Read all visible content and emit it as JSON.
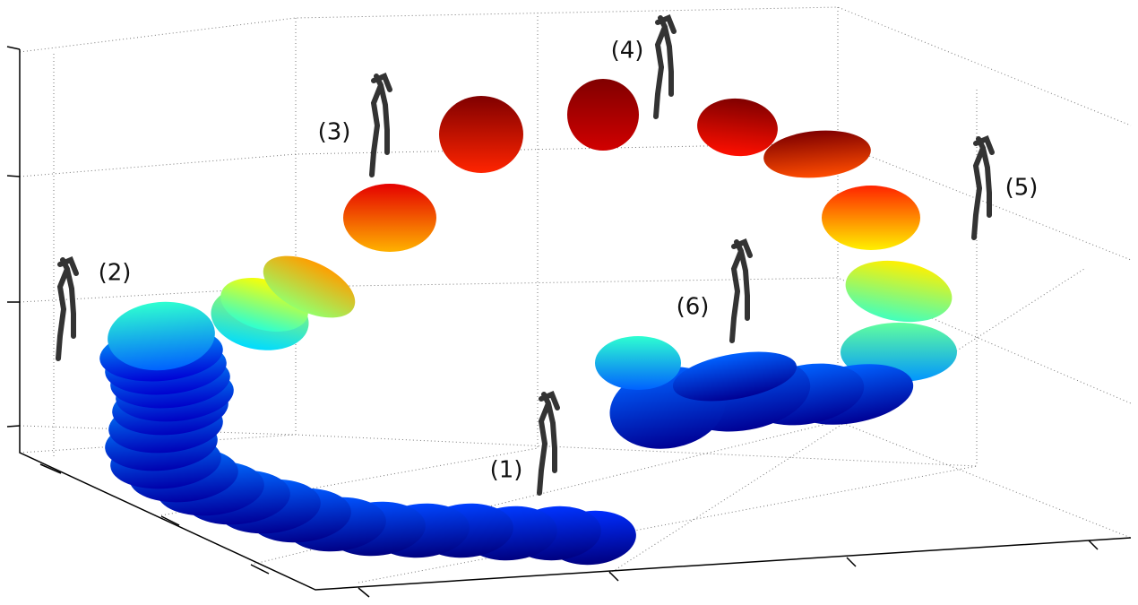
{
  "labels": [
    "(1)",
    "(2)",
    "(3)",
    "(4)",
    "(5)",
    "(6)"
  ]
}
